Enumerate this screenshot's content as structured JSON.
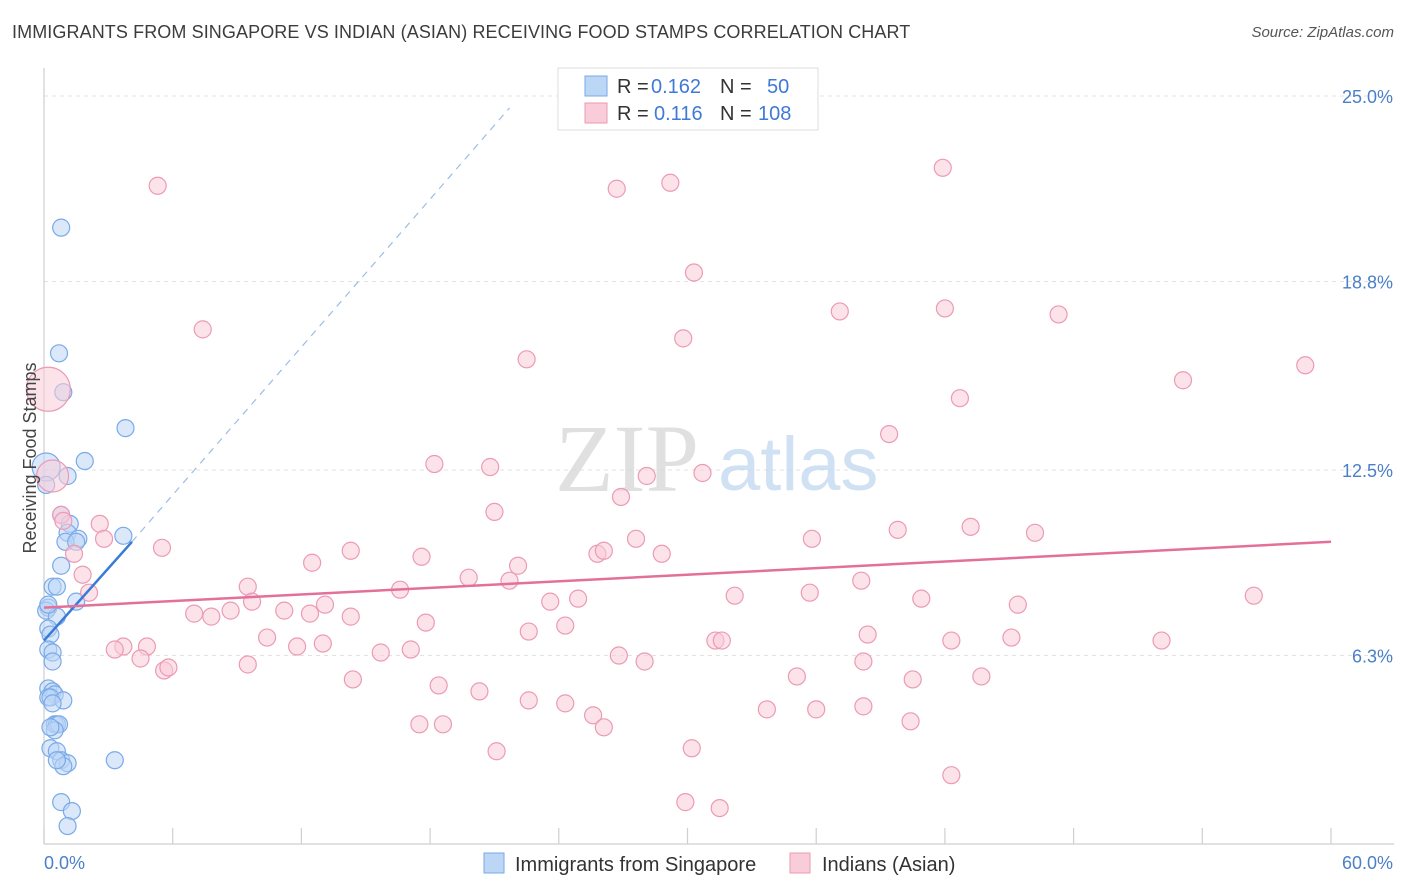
{
  "header": {
    "title": "IMMIGRANTS FROM SINGAPORE VS INDIAN (ASIAN) RECEIVING FOOD STAMPS CORRELATION CHART",
    "source": "Source: ZipAtlas.com"
  },
  "watermark": {
    "zip": "ZIP",
    "atlas": "atlas"
  },
  "chart_data": {
    "type": "scatter",
    "title": "IMMIGRANTS FROM SINGAPORE VS INDIAN (ASIAN) RECEIVING FOOD STAMPS CORRELATION CHART",
    "xlabel": "",
    "ylabel": "Receiving Food Stamps",
    "xlim": [
      0,
      60
    ],
    "ylim": [
      0,
      26.2
    ],
    "x_tick_labels": [
      "0.0%",
      "60.0%"
    ],
    "y_ticks": [
      6.3,
      12.5,
      18.8,
      25.0
    ],
    "y_tick_labels": [
      "6.3%",
      "12.5%",
      "18.8%",
      "25.0%"
    ],
    "grid": true,
    "legend": {
      "placement": "top-center",
      "r_label": "R =",
      "n_label": "N =",
      "entries": [
        {
          "name": "Immigrants from Singapore",
          "r": "0.162",
          "n": "50",
          "color": "#a8c8f0"
        },
        {
          "name": "Indians (Asian)",
          "r": "0.116",
          "n": "108",
          "color": "#f7b8cc"
        }
      ]
    },
    "series": [
      {
        "name": "Immigrants from Singapore",
        "color": "#7aaae8",
        "fill": "#bcd6f5",
        "trend": {
          "x": [
            0,
            4.1
          ],
          "y": [
            6.8,
            10.1
          ],
          "color": "#3a7bd5"
        },
        "trend_extension": {
          "x": [
            4.1,
            21.7
          ],
          "y": [
            10.1,
            24.6
          ]
        },
        "points": [
          [
            0.8,
            20.6
          ],
          [
            0.7,
            16.4
          ],
          [
            0.9,
            15.1
          ],
          [
            3.8,
            13.9
          ],
          [
            1.9,
            12.8
          ],
          [
            1.1,
            12.3
          ],
          [
            0.1,
            12.6
          ],
          [
            0.1,
            12.0
          ],
          [
            0.8,
            11.0
          ],
          [
            1.2,
            10.7
          ],
          [
            1.1,
            10.4
          ],
          [
            1.6,
            10.2
          ],
          [
            1.0,
            10.1
          ],
          [
            1.5,
            10.1
          ],
          [
            3.7,
            10.3
          ],
          [
            0.8,
            9.3
          ],
          [
            0.4,
            8.6
          ],
          [
            0.6,
            8.6
          ],
          [
            1.5,
            8.1
          ],
          [
            0.2,
            7.9
          ],
          [
            0.1,
            7.8
          ],
          [
            0.6,
            7.6
          ],
          [
            0.2,
            7.2
          ],
          [
            0.3,
            7.0
          ],
          [
            0.2,
            6.5
          ],
          [
            0.4,
            6.4
          ],
          [
            0.4,
            6.1
          ],
          [
            0.2,
            5.2
          ],
          [
            0.4,
            5.1
          ],
          [
            0.5,
            5.0
          ],
          [
            0.2,
            4.9
          ],
          [
            0.3,
            4.9
          ],
          [
            0.9,
            4.8
          ],
          [
            0.4,
            4.7
          ],
          [
            0.5,
            4.0
          ],
          [
            0.6,
            4.0
          ],
          [
            0.7,
            4.0
          ],
          [
            0.5,
            3.8
          ],
          [
            0.3,
            3.2
          ],
          [
            0.6,
            3.1
          ],
          [
            0.8,
            2.8
          ],
          [
            1.1,
            2.7
          ],
          [
            3.3,
            2.8
          ],
          [
            0.9,
            2.6
          ],
          [
            0.8,
            1.4
          ],
          [
            1.3,
            1.1
          ],
          [
            1.1,
            0.6
          ],
          [
            0.3,
            3.9
          ],
          [
            0.6,
            2.8
          ],
          [
            0.2,
            8.0
          ]
        ]
      },
      {
        "name": "Indians (Asian)",
        "color": "#ec9ab5",
        "fill": "#f9ccd9",
        "trend": {
          "x": [
            0,
            60
          ],
          "y": [
            7.9,
            10.1
          ],
          "color": "#e3709a"
        },
        "points": [
          [
            0.2,
            15.2
          ],
          [
            0.4,
            12.3
          ],
          [
            0.8,
            11.0
          ],
          [
            2.6,
            10.7
          ],
          [
            0.9,
            10.8
          ],
          [
            1.4,
            9.7
          ],
          [
            1.8,
            9.0
          ],
          [
            2.1,
            8.4
          ],
          [
            2.8,
            10.2
          ],
          [
            7.4,
            17.2
          ],
          [
            5.3,
            22.0
          ],
          [
            26.7,
            21.9
          ],
          [
            29.2,
            22.1
          ],
          [
            30.3,
            19.1
          ],
          [
            41.9,
            22.6
          ],
          [
            47.3,
            17.7
          ],
          [
            42.0,
            17.9
          ],
          [
            29.8,
            16.9
          ],
          [
            22.5,
            16.2
          ],
          [
            37.1,
            17.8
          ],
          [
            53.1,
            15.5
          ],
          [
            58.8,
            16.0
          ],
          [
            39.4,
            13.7
          ],
          [
            42.7,
            14.9
          ],
          [
            18.2,
            12.7
          ],
          [
            20.8,
            12.6
          ],
          [
            30.7,
            12.4
          ],
          [
            28.1,
            12.3
          ],
          [
            26.9,
            11.6
          ],
          [
            21.0,
            11.1
          ],
          [
            43.2,
            10.6
          ],
          [
            39.8,
            10.5
          ],
          [
            46.2,
            10.4
          ],
          [
            27.6,
            10.2
          ],
          [
            28.8,
            9.7
          ],
          [
            14.3,
            9.8
          ],
          [
            22.1,
            9.3
          ],
          [
            17.6,
            9.6
          ],
          [
            25.8,
            9.7
          ],
          [
            35.8,
            10.2
          ],
          [
            26.1,
            9.8
          ],
          [
            5.5,
            9.9
          ],
          [
            12.5,
            9.4
          ],
          [
            21.7,
            8.8
          ],
          [
            19.8,
            8.9
          ],
          [
            16.6,
            8.5
          ],
          [
            38.1,
            8.8
          ],
          [
            32.2,
            8.3
          ],
          [
            35.7,
            8.4
          ],
          [
            40.9,
            8.2
          ],
          [
            45.4,
            8.0
          ],
          [
            56.4,
            8.3
          ],
          [
            24.9,
            8.2
          ],
          [
            23.6,
            8.1
          ],
          [
            11.2,
            7.8
          ],
          [
            13.1,
            8.0
          ],
          [
            12.4,
            7.7
          ],
          [
            7.0,
            7.7
          ],
          [
            7.8,
            7.6
          ],
          [
            8.7,
            7.8
          ],
          [
            9.5,
            8.6
          ],
          [
            9.7,
            8.1
          ],
          [
            14.3,
            7.6
          ],
          [
            17.8,
            7.4
          ],
          [
            24.3,
            7.3
          ],
          [
            22.6,
            7.1
          ],
          [
            38.4,
            7.0
          ],
          [
            42.3,
            6.8
          ],
          [
            45.1,
            6.9
          ],
          [
            52.1,
            6.8
          ],
          [
            31.3,
            6.8
          ],
          [
            31.6,
            6.8
          ],
          [
            3.7,
            6.6
          ],
          [
            3.3,
            6.5
          ],
          [
            4.8,
            6.6
          ],
          [
            10.4,
            6.9
          ],
          [
            11.8,
            6.6
          ],
          [
            13.0,
            6.7
          ],
          [
            15.7,
            6.4
          ],
          [
            17.1,
            6.5
          ],
          [
            28.0,
            6.1
          ],
          [
            26.8,
            6.3
          ],
          [
            35.1,
            5.6
          ],
          [
            38.2,
            6.1
          ],
          [
            40.5,
            5.5
          ],
          [
            43.7,
            5.6
          ],
          [
            4.5,
            6.2
          ],
          [
            5.6,
            5.8
          ],
          [
            5.8,
            5.9
          ],
          [
            9.5,
            6.0
          ],
          [
            14.4,
            5.5
          ],
          [
            18.4,
            5.3
          ],
          [
            20.3,
            5.1
          ],
          [
            22.6,
            4.8
          ],
          [
            24.3,
            4.7
          ],
          [
            25.6,
            4.3
          ],
          [
            26.1,
            3.9
          ],
          [
            30.2,
            3.2
          ],
          [
            18.6,
            4.0
          ],
          [
            17.5,
            4.0
          ],
          [
            33.7,
            4.5
          ],
          [
            36.0,
            4.5
          ],
          [
            38.2,
            4.6
          ],
          [
            40.4,
            4.1
          ],
          [
            42.3,
            2.3
          ],
          [
            29.9,
            1.4
          ],
          [
            31.5,
            1.2
          ],
          [
            21.1,
            3.1
          ]
        ]
      }
    ],
    "annotations": [
      "Dashed blue line extends the Immigrants from Singapore trend toward the top of the plot"
    ]
  }
}
